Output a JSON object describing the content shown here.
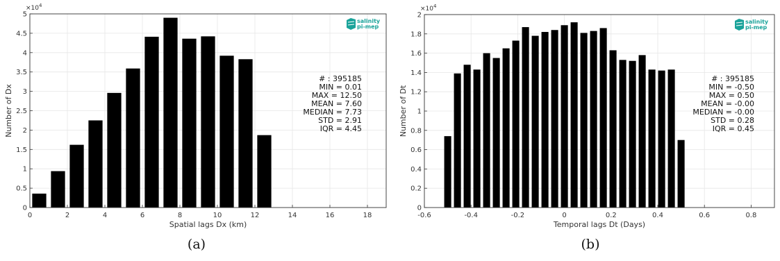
{
  "chart_data": [
    {
      "type": "bar",
      "caption": "(a)",
      "xlabel": "Spatial lags Dx (km)",
      "ylabel": "Number of Dx",
      "y_exponent": "×10",
      "y_exponent_power": "4",
      "xlim": [
        0,
        19
      ],
      "ylim": [
        0,
        5
      ],
      "xticks": [
        "0",
        "2",
        "4",
        "6",
        "8",
        "10",
        "12",
        "14",
        "16",
        "18"
      ],
      "yticks": [
        "0",
        "0.5",
        "1",
        "1.5",
        "2",
        "2.5",
        "3",
        "3.5",
        "4",
        "4.5",
        "5"
      ],
      "bar_width": 0.75,
      "x": [
        0.5,
        1.5,
        2.5,
        3.5,
        4.5,
        5.5,
        6.5,
        7.5,
        8.5,
        9.5,
        10.5,
        11.5,
        12.5
      ],
      "values": [
        0.36,
        0.94,
        1.62,
        2.25,
        2.96,
        3.59,
        4.41,
        4.9,
        4.36,
        4.42,
        3.92,
        3.83,
        1.87
      ],
      "grid": true,
      "stats": [
        "# : 395185",
        "MIN = 0.01",
        "MAX =  12.50",
        "MEAN = 7.60",
        "MEDIAN = 7.73",
        "STD = 2.91",
        "IQR = 4.45"
      ],
      "logo": {
        "line1": "salinity",
        "line2": "pi-mep",
        "color": "#1aa39a"
      }
    },
    {
      "type": "bar",
      "caption": "(b)",
      "xlabel": "Temporal lags Dt (Days)",
      "ylabel": "Number of Dt",
      "y_exponent": "×10",
      "y_exponent_power": "4",
      "xlim": [
        -0.6,
        0.9
      ],
      "ylim": [
        0,
        2
      ],
      "xticks": [
        "-0.6",
        "-0.4",
        "-0.2",
        "0",
        "0.2",
        "0.4",
        "0.6",
        "0.8"
      ],
      "yticks": [
        "0",
        "0.2",
        "0.4",
        "0.6",
        "0.8",
        "1",
        "1.2",
        "1.4",
        "1.6",
        "1.8",
        "2"
      ],
      "bar_width": 0.03,
      "x": [
        -0.5,
        -0.4583,
        -0.4167,
        -0.375,
        -0.3333,
        -0.2917,
        -0.25,
        -0.2083,
        -0.1667,
        -0.125,
        -0.0833,
        -0.0417,
        0,
        0.0417,
        0.0833,
        0.125,
        0.1667,
        0.2083,
        0.25,
        0.2917,
        0.3333,
        0.375,
        0.4167,
        0.4583,
        0.5
      ],
      "values": [
        0.74,
        1.39,
        1.48,
        1.43,
        1.6,
        1.55,
        1.65,
        1.73,
        1.87,
        1.78,
        1.82,
        1.84,
        1.89,
        1.92,
        1.81,
        1.83,
        1.86,
        1.63,
        1.53,
        1.52,
        1.58,
        1.43,
        1.42,
        1.43,
        0.7
      ],
      "grid": true,
      "stats": [
        "# : 395185",
        "MIN = -0.50",
        "MAX = 0.50",
        "MEAN = -0.00",
        "MEDIAN = -0.00",
        "STD = 0.28",
        "IQR = 0.45"
      ],
      "logo": {
        "line1": "salinity",
        "line2": "pi-mep",
        "color": "#1aa39a"
      }
    }
  ]
}
